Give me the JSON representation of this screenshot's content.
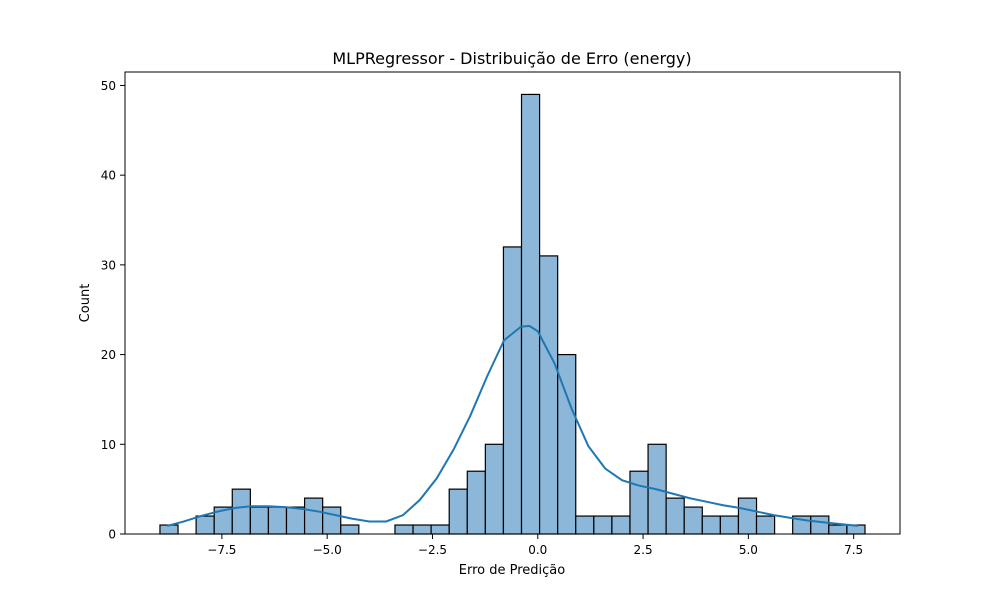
{
  "chart_data": {
    "type": "bar",
    "title": "MLPRegressor - Distribuição de Erro (energy)",
    "xlabel": "Erro de Predição",
    "ylabel": "Count",
    "xlim": [
      -9.8,
      8.6
    ],
    "ylim": [
      0,
      51.5
    ],
    "x_ticks": [
      -7.5,
      -5.0,
      -2.5,
      0.0,
      2.5,
      5.0,
      7.5
    ],
    "x_tick_labels": [
      "−7.5",
      "−5.0",
      "−2.5",
      "0.0",
      "2.5",
      "5.0",
      "7.5"
    ],
    "y_ticks": [
      0,
      10,
      20,
      30,
      40,
      50
    ],
    "y_tick_labels": [
      "0",
      "10",
      "20",
      "30",
      "40",
      "50"
    ],
    "grid": false,
    "bin_start": -8.97,
    "bin_width": 0.4292,
    "counts": [
      1,
      0,
      2,
      3,
      5,
      3,
      3,
      3,
      4,
      3,
      1,
      0,
      0,
      1,
      1,
      1,
      5,
      7,
      10,
      32,
      49,
      31,
      20,
      2,
      2,
      2,
      7,
      10,
      4,
      3,
      2,
      2,
      4,
      2,
      0,
      2,
      2,
      1,
      1
    ],
    "kde": {
      "x": [
        -8.8,
        -8.4,
        -8.0,
        -7.6,
        -7.2,
        -6.8,
        -6.4,
        -6.0,
        -5.6,
        -5.2,
        -4.8,
        -4.4,
        -4.0,
        -3.6,
        -3.2,
        -2.8,
        -2.4,
        -2.0,
        -1.6,
        -1.2,
        -0.8,
        -0.4,
        -0.2,
        0.0,
        0.4,
        0.8,
        1.2,
        1.6,
        2.0,
        2.4,
        2.8,
        3.2,
        3.6,
        4.0,
        4.4,
        4.8,
        5.2,
        5.6,
        6.0,
        6.4,
        6.8,
        7.2,
        7.6
      ],
      "y": [
        0.9,
        1.4,
        2.0,
        2.5,
        2.9,
        3.1,
        3.1,
        3.0,
        2.8,
        2.5,
        2.1,
        1.7,
        1.4,
        1.4,
        2.1,
        3.8,
        6.2,
        9.4,
        13.2,
        17.6,
        21.6,
        23.1,
        23.2,
        22.6,
        19.0,
        14.0,
        9.8,
        7.3,
        6.0,
        5.4,
        5.0,
        4.5,
        4.0,
        3.6,
        3.2,
        2.9,
        2.5,
        2.1,
        1.8,
        1.5,
        1.3,
        1.1,
        0.9
      ]
    },
    "colors": {
      "bar_fill": "#8db7d9",
      "bar_edge": "#000000",
      "kde_line": "#1f77b4"
    }
  }
}
